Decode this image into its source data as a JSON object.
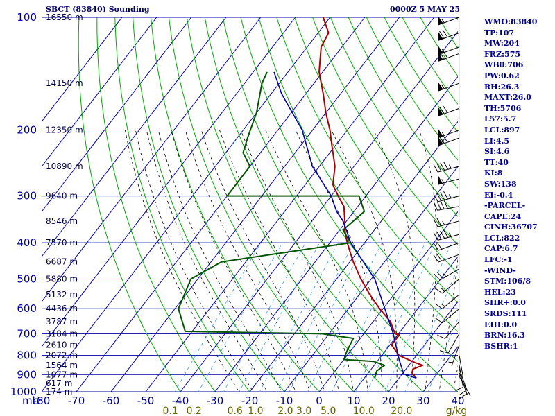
{
  "header": {
    "title": "SBCT (83840) Sounding",
    "datetime": "0000Z  5 MAY 25"
  },
  "indices": [
    "WMO:83840",
    "TP:107",
    "MW:204",
    "FRZ:575",
    "WB0:706",
    "PW:0.62",
    "RH:26.3",
    "MAXT:26.0",
    "TH:5706",
    "L57:5.7",
    "LCL:897",
    "LI:4.5",
    "SI:4.6",
    "TT:40",
    "KI:8",
    "SW:138",
    "EI:-0.4",
    "-PARCEL-",
    "CAPE:24",
    "CINH:36707",
    "LCL:822",
    "CAP:6.7",
    "LFC:-1",
    "-WIND-",
    "STM:106/8",
    "HEL:23",
    "SHR+:0.0",
    "SRDS:111",
    "EHI:0.0",
    "BRN:16.3",
    "BSHR:1"
  ],
  "chart_data": {
    "type": "line",
    "subtype": "skew-T log-P sounding",
    "colors": {
      "grid": "#0000aa",
      "isotherm": "#0000aa",
      "dry_adiabat": "#00aa00",
      "moist_adiabat": "#000000",
      "mixing_ratio": "#3399ff",
      "temperature": "#aa0000",
      "dewpoint": "#005500",
      "parcel": "#0000aa",
      "label": "#000088",
      "mixing_label": "#666600",
      "wind": "#000000"
    },
    "pressure_unit": "mb",
    "pressure_levels": [
      100,
      200,
      300,
      400,
      500,
      600,
      700,
      800,
      900,
      1000
    ],
    "temperature_ticks": [
      -80,
      -70,
      -60,
      -50,
      -40,
      -30,
      -20,
      -10,
      0,
      10,
      20,
      30,
      40
    ],
    "temperature_tick_labels": [
      "-80",
      "-70",
      "-60",
      "-50",
      "-40",
      "-30",
      "-20",
      "-10",
      "0",
      "10",
      "20",
      "30",
      "40"
    ],
    "mixing_ratio_unit": "g/kg",
    "mixing_ratio_labels": [
      {
        "text": "0.1",
        "value": 0.1
      },
      {
        "text": "0.2",
        "value": 0.2
      },
      {
        "text": "0.6",
        "value": 0.6
      },
      {
        "text": "1.0",
        "value": 1.0
      },
      {
        "text": "2.0",
        "value": 2.0
      },
      {
        "text": "3.0",
        "value": 3.0
      },
      {
        "text": "5.0",
        "value": 5.0
      },
      {
        "text": "10.0",
        "value": 10.0
      },
      {
        "text": "20.0",
        "value": 20.0
      }
    ],
    "height_labels": [
      {
        "p": 100,
        "text": "16550 m"
      },
      {
        "p": 150,
        "text": "14150 m"
      },
      {
        "p": 200,
        "text": "12350 m"
      },
      {
        "p": 250,
        "text": "10890 m"
      },
      {
        "p": 300,
        "text": "9640 m"
      },
      {
        "p": 350,
        "text": "8546 m"
      },
      {
        "p": 400,
        "text": "7570 m"
      },
      {
        "p": 450,
        "text": "6687 m"
      },
      {
        "p": 500,
        "text": "5880 m"
      },
      {
        "p": 550,
        "text": "5132 m"
      },
      {
        "p": 600,
        "text": "4436 m"
      },
      {
        "p": 650,
        "text": "3787 m"
      },
      {
        "p": 700,
        "text": "3184 m"
      },
      {
        "p": 750,
        "text": "2610 m"
      },
      {
        "p": 800,
        "text": "2072 m"
      },
      {
        "p": 850,
        "text": "1564 m"
      },
      {
        "p": 900,
        "text": "1077 m"
      },
      {
        "p": 950,
        "text": "617 m"
      },
      {
        "p": 1000,
        "text": "174 m"
      }
    ],
    "series": [
      {
        "key": "temperature",
        "points": [
          [
            920,
            25.0
          ],
          [
            890,
            22.6
          ],
          [
            870,
            22.0
          ],
          [
            850,
            24.0
          ],
          [
            835,
            21.0
          ],
          [
            800,
            15.0
          ],
          [
            750,
            10.5
          ],
          [
            705,
            10.5
          ],
          [
            700,
            9.0
          ],
          [
            650,
            5.0
          ],
          [
            600,
            -1.0
          ],
          [
            550,
            -7.0
          ],
          [
            500,
            -13.0
          ],
          [
            450,
            -19.0
          ],
          [
            400,
            -25.0
          ],
          [
            370,
            -28.5
          ],
          [
            350,
            -30.5
          ],
          [
            320,
            -34.0
          ],
          [
            300,
            -38.0
          ],
          [
            280,
            -42.0
          ],
          [
            250,
            -45.5
          ],
          [
            220,
            -51.0
          ],
          [
            200,
            -55.0
          ],
          [
            180,
            -60.0
          ],
          [
            160,
            -65.0
          ],
          [
            140,
            -71.0
          ],
          [
            120,
            -76.0
          ],
          [
            110,
            -77.0
          ],
          [
            100,
            -82.0
          ]
        ]
      },
      {
        "key": "dewpoint",
        "points": [
          [
            920,
            13.0
          ],
          [
            880,
            12.0
          ],
          [
            850,
            13.0
          ],
          [
            830,
            9.0
          ],
          [
            820,
            0.0
          ],
          [
            780,
            -1.0
          ],
          [
            720,
            -2.0
          ],
          [
            700,
            -12.0
          ],
          [
            690,
            -52.0
          ],
          [
            600,
            -59.0
          ],
          [
            500,
            -62.0
          ],
          [
            450,
            -57.0
          ],
          [
            400,
            -24.0
          ],
          [
            370,
            -29.0
          ],
          [
            330,
            -27.0
          ],
          [
            300,
            -32.0
          ],
          [
            300,
            -70.0
          ],
          [
            250,
            -70.0
          ],
          [
            230,
            -75.0
          ],
          [
            210,
            -77.0
          ],
          [
            180,
            -80.0
          ],
          [
            150,
            -85.0
          ],
          [
            140,
            -86.0
          ]
        ]
      },
      {
        "key": "parcel",
        "points": [
          [
            920,
            25.0
          ],
          [
            897,
            20.5
          ],
          [
            822,
            16.0
          ],
          [
            700,
            8.5
          ],
          [
            600,
            0.5
          ],
          [
            500,
            -9.0
          ],
          [
            400,
            -24.0
          ],
          [
            350,
            -31.0
          ],
          [
            330,
            -35.0
          ],
          [
            300,
            -40.0
          ],
          [
            250,
            -52.0
          ],
          [
            200,
            -63.0
          ],
          [
            160,
            -77.0
          ],
          [
            140,
            -84.0
          ]
        ]
      }
    ],
    "wind_barbs": [
      {
        "p": 100,
        "dir": 250,
        "spd": 55
      },
      {
        "p": 110,
        "dir": 250,
        "spd": 70
      },
      {
        "p": 120,
        "dir": 250,
        "spd": 55
      },
      {
        "p": 125,
        "dir": 250,
        "spd": 70
      },
      {
        "p": 150,
        "dir": 250,
        "spd": 55
      },
      {
        "p": 175,
        "dir": 250,
        "spd": 70
      },
      {
        "p": 200,
        "dir": 250,
        "spd": 55
      },
      {
        "p": 210,
        "dir": 250,
        "spd": 70
      },
      {
        "p": 250,
        "dir": 255,
        "spd": 45
      },
      {
        "p": 270,
        "dir": 255,
        "spd": 55
      },
      {
        "p": 300,
        "dir": 255,
        "spd": 45
      },
      {
        "p": 320,
        "dir": 260,
        "spd": 40
      },
      {
        "p": 350,
        "dir": 255,
        "spd": 25
      },
      {
        "p": 380,
        "dir": 255,
        "spd": 45
      },
      {
        "p": 400,
        "dir": 250,
        "spd": 20
      },
      {
        "p": 430,
        "dir": 250,
        "spd": 20
      },
      {
        "p": 470,
        "dir": 240,
        "spd": 25
      },
      {
        "p": 500,
        "dir": 230,
        "spd": 15
      },
      {
        "p": 550,
        "dir": 230,
        "spd": 15
      },
      {
        "p": 600,
        "dir": 230,
        "spd": 10
      },
      {
        "p": 650,
        "dir": 220,
        "spd": 10
      },
      {
        "p": 700,
        "dir": 210,
        "spd": 10
      },
      {
        "p": 750,
        "dir": 200,
        "spd": 5
      },
      {
        "p": 800,
        "dir": 170,
        "spd": 5
      },
      {
        "p": 850,
        "dir": 170,
        "spd": 10
      },
      {
        "p": 870,
        "dir": 160,
        "spd": 10
      },
      {
        "p": 890,
        "dir": 160,
        "spd": 10
      },
      {
        "p": 910,
        "dir": 150,
        "spd": 5
      }
    ]
  }
}
